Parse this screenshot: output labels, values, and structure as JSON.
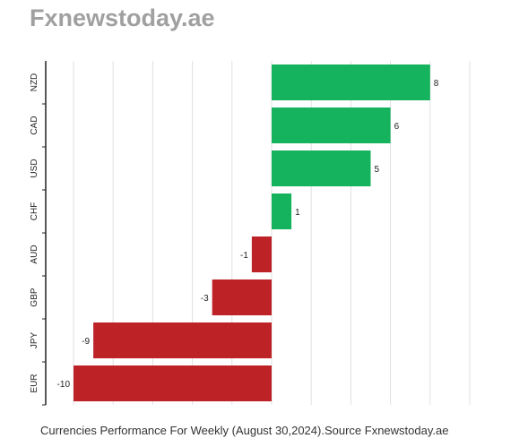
{
  "title": "Fxnewstoday.ae",
  "caption": "Currencies Performance For Weekly (August 30,2024).Source Fxnewstoday.ae",
  "colors": {
    "positive": "#16b35e",
    "negative": "#bd2226",
    "grid": "#e0e0e0",
    "axis": "#222222",
    "title": "#a0a0a0",
    "text": "#222222"
  },
  "chart_data": {
    "type": "bar",
    "orientation": "horizontal",
    "categories": [
      "NZD",
      "CAD",
      "USD",
      "CHF",
      "AUD",
      "GBP",
      "JPY",
      "EUR"
    ],
    "values": [
      8,
      6,
      5,
      1,
      -1,
      -3,
      -9,
      -10
    ],
    "data_labels": [
      "8",
      "6",
      "5",
      "1",
      "-1",
      "-3",
      "-9",
      "-10"
    ],
    "xlim": [
      -10,
      10
    ],
    "grid": true,
    "legend": "none"
  }
}
